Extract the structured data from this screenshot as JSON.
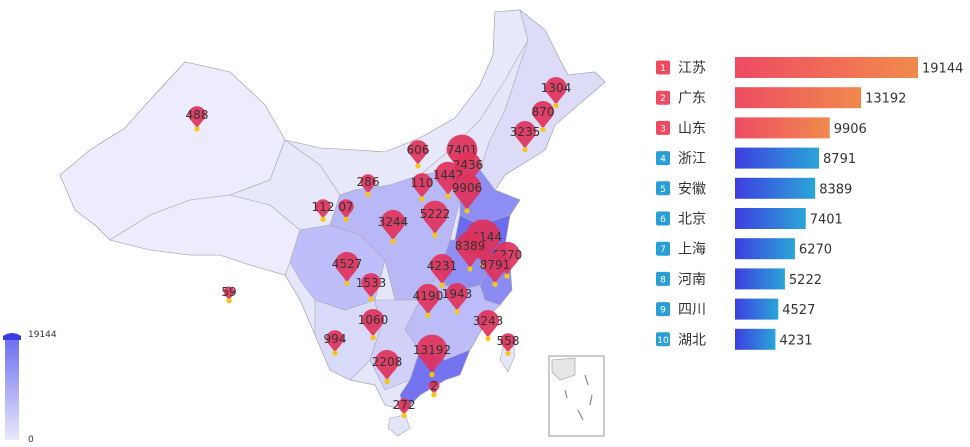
{
  "chart_data": [
    {
      "type": "map",
      "region": "China",
      "visual_map": {
        "min": 0,
        "max": 19144,
        "min_label": "0",
        "max_label": "19144",
        "color_low": "#e9e9fb",
        "color_high": "#6c6cf0"
      },
      "pin_color": "#e0325a",
      "pin_labels": [
        "1304",
        "870",
        "3235",
        "488",
        "606",
        "7401",
        "2436",
        "1442",
        "110",
        "9906",
        "286",
        "112",
        "07",
        "5222",
        "3244",
        "19144",
        "8389",
        "6270",
        "8791",
        "4527",
        "4231",
        "1533",
        "59",
        "4190",
        "1943",
        "3243",
        "1060",
        "994",
        "558",
        "13192",
        "2208",
        "272",
        "2"
      ]
    },
    {
      "type": "bar",
      "orientation": "horizontal",
      "categories": [
        "江苏",
        "广东",
        "山东",
        "浙江",
        "安徽",
        "北京",
        "上海",
        "河南",
        "四川",
        "湖北"
      ],
      "ranks": [
        "1",
        "2",
        "3",
        "4",
        "5",
        "6",
        "7",
        "8",
        "9",
        "10"
      ],
      "values": [
        19144,
        13192,
        9906,
        8791,
        8389,
        7401,
        6270,
        5222,
        4527,
        4231
      ],
      "value_labels": [
        "19144",
        "13192",
        "9906",
        "8791",
        "8389",
        "7401",
        "6270",
        "5222",
        "4527",
        "4231"
      ],
      "top_gradient": [
        "#ef4b63",
        "#f08a4c"
      ],
      "rest_gradient": [
        "#3d3ee0",
        "#2aa6d8"
      ],
      "rank_colors": {
        "top": "#ee4b63",
        "rest": "#2a9fd6"
      },
      "xlim": [
        0,
        19144
      ]
    }
  ]
}
